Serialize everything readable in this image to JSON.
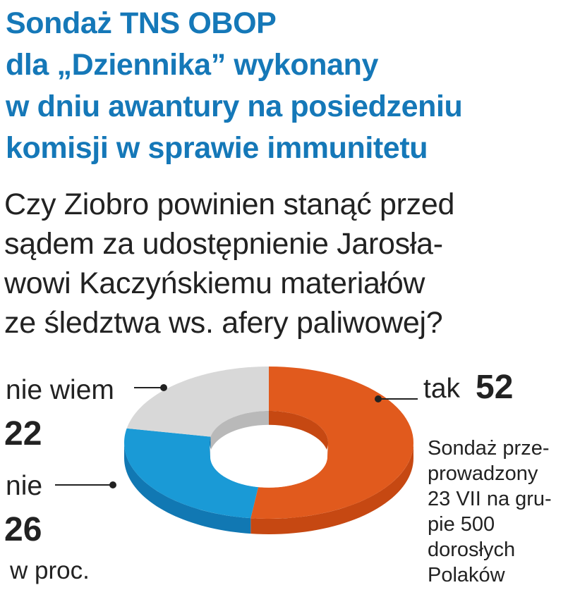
{
  "title_lines": [
    "Sondaż TNS OBOP",
    "dla „Dziennika” wykonany",
    "w dniu awantury na posiedzeniu",
    "komisji w sprawie immunitetu"
  ],
  "question_lines": [
    "Czy Ziobro powinien stanąć przed",
    "sądem za udostępnienie Jarosła-",
    "wowi Kaczyńskiemu materiałów",
    "ze śledztwa ws. afery paliwowej?"
  ],
  "unit_label": "w proc.",
  "note_lines": [
    "Sondaż prze-",
    "prowadzony",
    "23 VII na gru-",
    "pie 500",
    "dorosłych",
    "Polaków"
  ],
  "chart_data": {
    "type": "pie",
    "variant": "donut-3d",
    "unit": "w proc.",
    "slices": [
      {
        "label": "tak",
        "value": 52,
        "color": "#e15a1d",
        "side_color": "#c64812"
      },
      {
        "label": "nie",
        "value": 26,
        "color": "#1a9ad6",
        "side_color": "#1178b3"
      },
      {
        "label": "nie wiem",
        "value": 22,
        "color": "#d8d8d8",
        "side_color": "#b9b9b9"
      }
    ]
  }
}
